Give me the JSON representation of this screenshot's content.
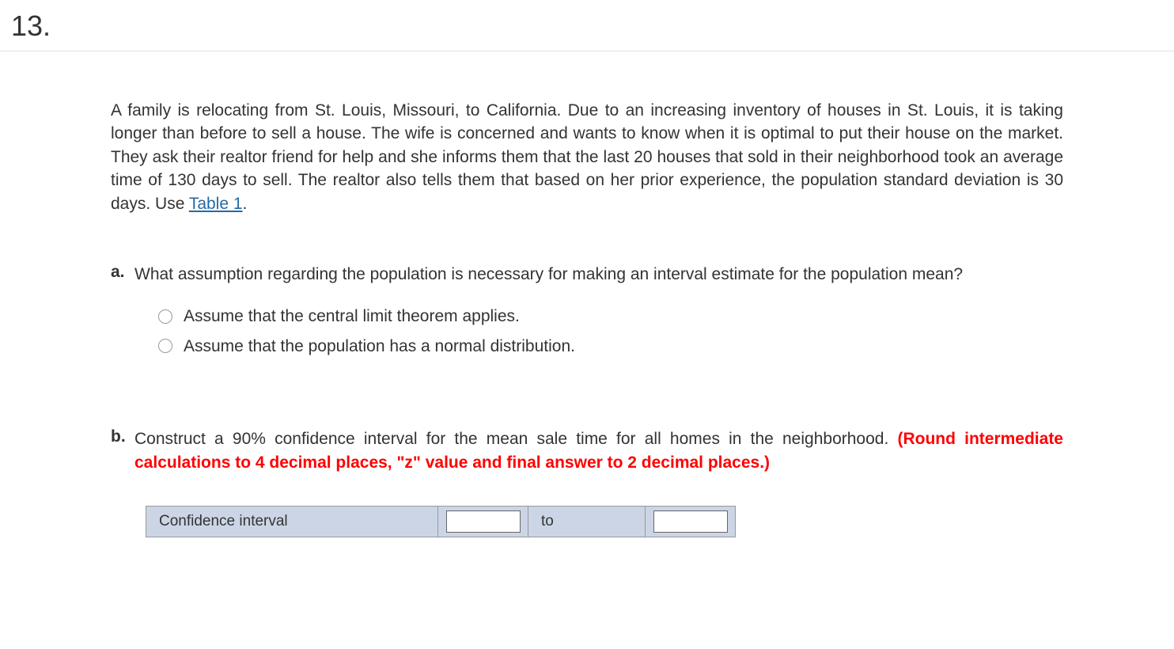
{
  "question_number": "13.",
  "intro_text_part1": "A family is relocating from St. Louis, Missouri, to California. Due to an increasing inventory of houses in St. Louis, it is taking longer than before to sell a house. The wife is concerned and wants to know when it is optimal to put their house on the market. They ask their realtor friend for help and she informs them that the last 20 houses that sold in their neighborhood took an average time of 130 days to sell. The realtor also tells them that based on her prior experience, the population standard deviation is 30 days. Use ",
  "table_link_text": "Table 1",
  "intro_text_part2": ".",
  "parts": {
    "a": {
      "label": "a.",
      "question": "What assumption regarding the population is necessary for making an interval estimate for the population mean?",
      "options": [
        "Assume that the central limit theorem applies.",
        "Assume that the population has a normal distribution."
      ]
    },
    "b": {
      "label": "b.",
      "question_part1": "Construct a 90% confidence interval for the mean sale time for all homes in the neighborhood. ",
      "question_red": "(Round intermediate calculations to 4 decimal places, \"z\" value and final answer to 2 decimal places.)"
    }
  },
  "answer_table": {
    "label": "Confidence interval",
    "to_text": "to",
    "lower_value": "",
    "upper_value": ""
  },
  "colors": {
    "link": "#2469a5",
    "red": "#ff0000",
    "table_bg": "#ccd5e6",
    "border": "#999999",
    "text": "#333333"
  }
}
